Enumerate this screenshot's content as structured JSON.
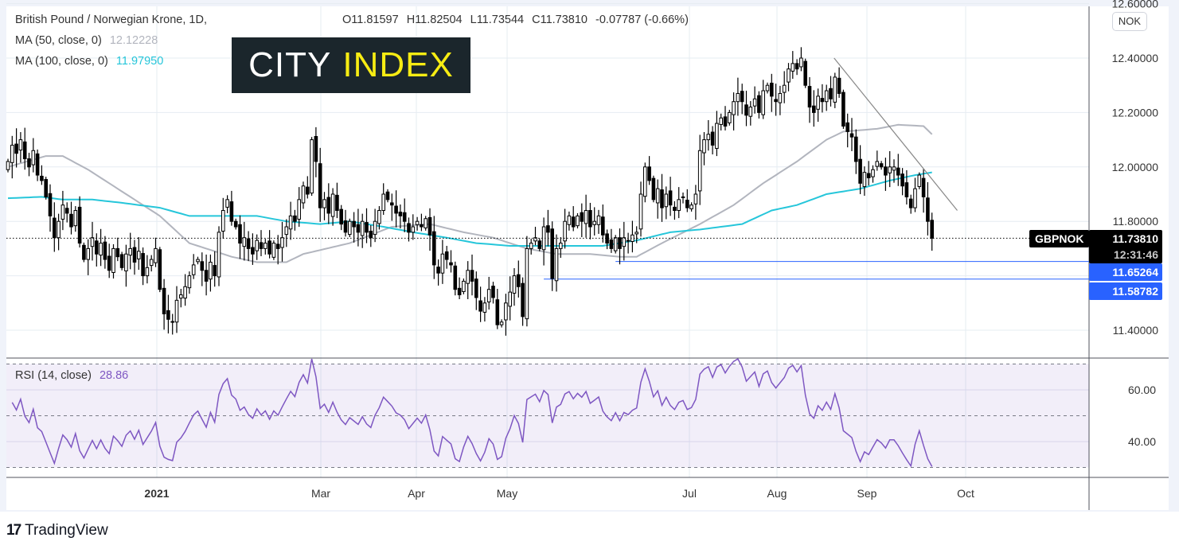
{
  "header": {
    "symbol_title": "British Pound / Norwegian Krone, 1D,",
    "open": "O11.81597",
    "high": "H11.82504",
    "low": "L11.73544",
    "close": "C11.73810",
    "change": "-0.07787 (-0.66%)",
    "ma50_label": "MA (50, close, 0)",
    "ma50_value": "12.12228",
    "ma100_label": "MA (100, close, 0)",
    "ma100_value": "11.97950"
  },
  "logo": {
    "part1": "CITY",
    "part2": "INDEX"
  },
  "currency_badge": "NOK",
  "price_axis": {
    "ticks": [
      "12.60000",
      "12.40000",
      "12.20000",
      "12.00000",
      "11.80000",
      "11.40000"
    ],
    "symbol_tag": "GBPNOK",
    "last_price": "11.73810",
    "countdown": "12:31:46",
    "level1": "11.65264",
    "level2": "11.58782"
  },
  "rsi": {
    "label": "RSI (14, close)",
    "value": "28.86",
    "ticks": [
      "60.00",
      "40.00"
    ]
  },
  "time_axis": [
    "2021",
    "Mar",
    "Apr",
    "May",
    "Jul",
    "Aug",
    "Sep",
    "Oct"
  ],
  "footer": {
    "brand": "TradingView"
  },
  "colors": {
    "ma50": "#b2b5be",
    "ma100": "#26c6da",
    "rsi": "#7e57c2",
    "level": "#2962ff",
    "bear": "#000000",
    "bull": "#ffffff"
  },
  "chart_data": {
    "type": "candlestick",
    "title": "British Pound / Norwegian Krone, 1D",
    "ylim": [
      11.33,
      12.6
    ],
    "closes": [
      12.02,
      12.08,
      12.05,
      12.1,
      12.03,
      12.0,
      12.06,
      11.97,
      11.95,
      11.89,
      11.82,
      11.74,
      11.8,
      11.86,
      11.83,
      11.78,
      11.84,
      11.72,
      11.66,
      11.7,
      11.74,
      11.68,
      11.72,
      11.66,
      11.62,
      11.7,
      11.67,
      11.63,
      11.68,
      11.7,
      11.65,
      11.69,
      11.6,
      11.63,
      11.66,
      11.7,
      11.55,
      11.46,
      11.44,
      11.43,
      11.51,
      11.53,
      11.56,
      11.6,
      11.64,
      11.66,
      11.62,
      11.58,
      11.65,
      11.6,
      11.76,
      11.84,
      11.88,
      11.8,
      11.78,
      11.72,
      11.74,
      11.7,
      11.68,
      11.73,
      11.7,
      11.72,
      11.68,
      11.72,
      11.7,
      11.74,
      11.78,
      11.82,
      11.8,
      11.88,
      11.93,
      11.9,
      12.1,
      12.02,
      11.85,
      11.88,
      11.83,
      11.9,
      11.84,
      11.79,
      11.76,
      11.8,
      11.78,
      11.76,
      11.8,
      11.76,
      11.74,
      11.8,
      11.84,
      11.9,
      11.88,
      11.86,
      11.83,
      11.82,
      11.8,
      11.76,
      11.78,
      11.8,
      11.78,
      11.81,
      11.75,
      11.64,
      11.61,
      11.68,
      11.66,
      11.64,
      11.55,
      11.53,
      11.58,
      11.62,
      11.58,
      11.52,
      11.47,
      11.5,
      11.55,
      11.52,
      11.42,
      11.43,
      11.5,
      11.54,
      11.6,
      11.56,
      11.45,
      11.7,
      11.72,
      11.74,
      11.7,
      11.78,
      11.76,
      11.59,
      11.7,
      11.72,
      11.8,
      11.82,
      11.78,
      11.82,
      11.8,
      11.84,
      11.78,
      11.8,
      11.82,
      11.75,
      11.72,
      11.7,
      11.74,
      11.7,
      11.74,
      11.73,
      11.75,
      11.76,
      11.9,
      12.0,
      11.95,
      11.88,
      11.92,
      11.85,
      11.9,
      11.86,
      11.84,
      11.88,
      11.89,
      11.85,
      11.86,
      11.9,
      12.06,
      12.1,
      12.12,
      12.08,
      12.16,
      12.18,
      12.15,
      12.2,
      12.24,
      12.27,
      12.24,
      12.19,
      12.22,
      12.25,
      12.2,
      12.28,
      12.3,
      12.26,
      12.24,
      12.27,
      12.3,
      12.36,
      12.38,
      12.36,
      12.4,
      12.3,
      12.22,
      12.2,
      12.26,
      12.24,
      12.28,
      12.25,
      12.33,
      12.27,
      12.15,
      12.13,
      12.11,
      12.02,
      11.94,
      11.98,
      11.96,
      11.99,
      12.02,
      12.0,
      11.97,
      12.0,
      12.0,
      11.97,
      11.93,
      11.89,
      11.85,
      11.92,
      11.97,
      11.89,
      11.8,
      11.738
    ],
    "ma50": [
      [
        0,
        12.0
      ],
      [
        9,
        12.04
      ],
      [
        13,
        12.04
      ],
      [
        19,
        11.99
      ],
      [
        26,
        11.92
      ],
      [
        36,
        11.82
      ],
      [
        43,
        11.72
      ],
      [
        47,
        11.7
      ],
      [
        53,
        11.67
      ],
      [
        59,
        11.65
      ],
      [
        66,
        11.65
      ],
      [
        70,
        11.68
      ],
      [
        81,
        11.72
      ],
      [
        91,
        11.78
      ],
      [
        100,
        11.79
      ],
      [
        108,
        11.76
      ],
      [
        115,
        11.74
      ],
      [
        123,
        11.7
      ],
      [
        130,
        11.68
      ],
      [
        138,
        11.68
      ],
      [
        145,
        11.67
      ],
      [
        149,
        11.67
      ],
      [
        155,
        11.72
      ],
      [
        164,
        11.79
      ],
      [
        172,
        11.86
      ],
      [
        179,
        11.94
      ],
      [
        187,
        12.02
      ],
      [
        194,
        12.1
      ],
      [
        198,
        12.13
      ],
      [
        206,
        12.14
      ],
      [
        211,
        12.155
      ],
      [
        217,
        12.15
      ],
      [
        219,
        12.12
      ]
    ],
    "ma100": [
      [
        0,
        11.885
      ],
      [
        8,
        11.89
      ],
      [
        13,
        11.88
      ],
      [
        20,
        11.88
      ],
      [
        26,
        11.87
      ],
      [
        36,
        11.85
      ],
      [
        43,
        11.82
      ],
      [
        51,
        11.82
      ],
      [
        59,
        11.82
      ],
      [
        66,
        11.8
      ],
      [
        74,
        11.79
      ],
      [
        81,
        11.8
      ],
      [
        89,
        11.78
      ],
      [
        96,
        11.76
      ],
      [
        104,
        11.74
      ],
      [
        111,
        11.72
      ],
      [
        119,
        11.71
      ],
      [
        126,
        11.71
      ],
      [
        134,
        11.71
      ],
      [
        141,
        11.71
      ],
      [
        149,
        11.73
      ],
      [
        157,
        11.76
      ],
      [
        164,
        11.77
      ],
      [
        174,
        11.79
      ],
      [
        181,
        11.84
      ],
      [
        187,
        11.86
      ],
      [
        194,
        11.9
      ],
      [
        202,
        11.92
      ],
      [
        209,
        11.95
      ],
      [
        215,
        11.97
      ],
      [
        219,
        11.98
      ]
    ],
    "trendline": [
      [
        195.8,
        12.4
      ],
      [
        225,
        11.84
      ]
    ],
    "levels": [
      {
        "value": 11.65264,
        "from_bar": 144
      },
      {
        "value": 11.58782,
        "from_bar": 127
      }
    ],
    "rsi_period": 14,
    "rsi_bands": [
      30,
      50,
      70
    ],
    "rsi_ylim": [
      25,
      72
    ]
  }
}
